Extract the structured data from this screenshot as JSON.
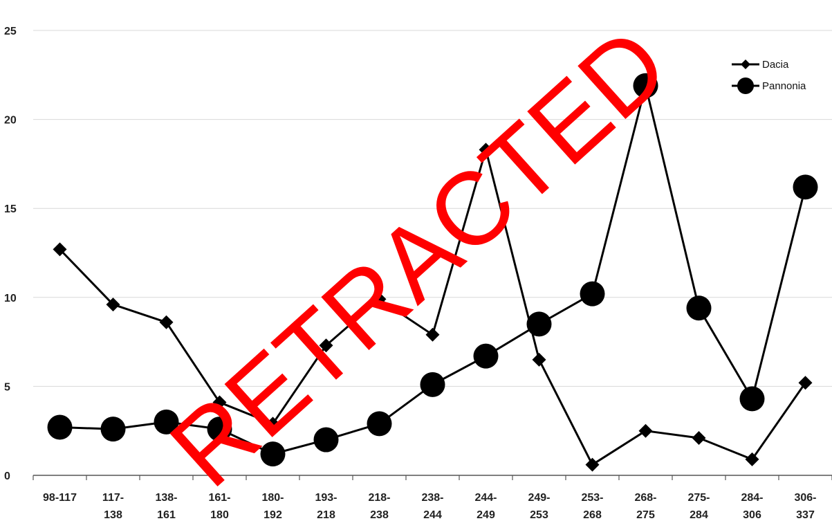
{
  "chart_data": {
    "type": "line",
    "title": "",
    "xlabel": "",
    "ylabel": "",
    "categories": [
      [
        "98-117"
      ],
      [
        "117-",
        "138"
      ],
      [
        "138-",
        "161"
      ],
      [
        "161-",
        "180"
      ],
      [
        "180-",
        "192"
      ],
      [
        "193-",
        "218"
      ],
      [
        "218-",
        "238"
      ],
      [
        "238-",
        "244"
      ],
      [
        "244-",
        "249"
      ],
      [
        "249-",
        "253"
      ],
      [
        "253-",
        "268"
      ],
      [
        "268-",
        "275"
      ],
      [
        "275-",
        "284"
      ],
      [
        "284-",
        "306"
      ],
      [
        "306-",
        "337"
      ]
    ],
    "y_ticks": [
      "0",
      "5",
      "10",
      "15",
      "20",
      "25"
    ],
    "ylim": [
      0,
      25
    ],
    "grid": true,
    "legend_position": "top-right",
    "series": [
      {
        "name": "Dacia",
        "marker": "diamond",
        "color": "#000000",
        "values": [
          12.7,
          9.6,
          8.6,
          4.1,
          2.9,
          7.3,
          9.9,
          7.9,
          18.3,
          6.5,
          0.6,
          2.5,
          2.1,
          0.9,
          5.2
        ]
      },
      {
        "name": "Pannonia",
        "marker": "circle",
        "color": "#000000",
        "values": [
          2.7,
          2.6,
          3.0,
          2.6,
          1.2,
          2.0,
          2.9,
          5.1,
          6.7,
          8.5,
          10.2,
          21.9,
          9.4,
          4.3,
          16.2
        ]
      }
    ],
    "annotations": [
      {
        "text": "RETRACTED",
        "color": "#ff0000",
        "rotation": -42
      }
    ]
  }
}
